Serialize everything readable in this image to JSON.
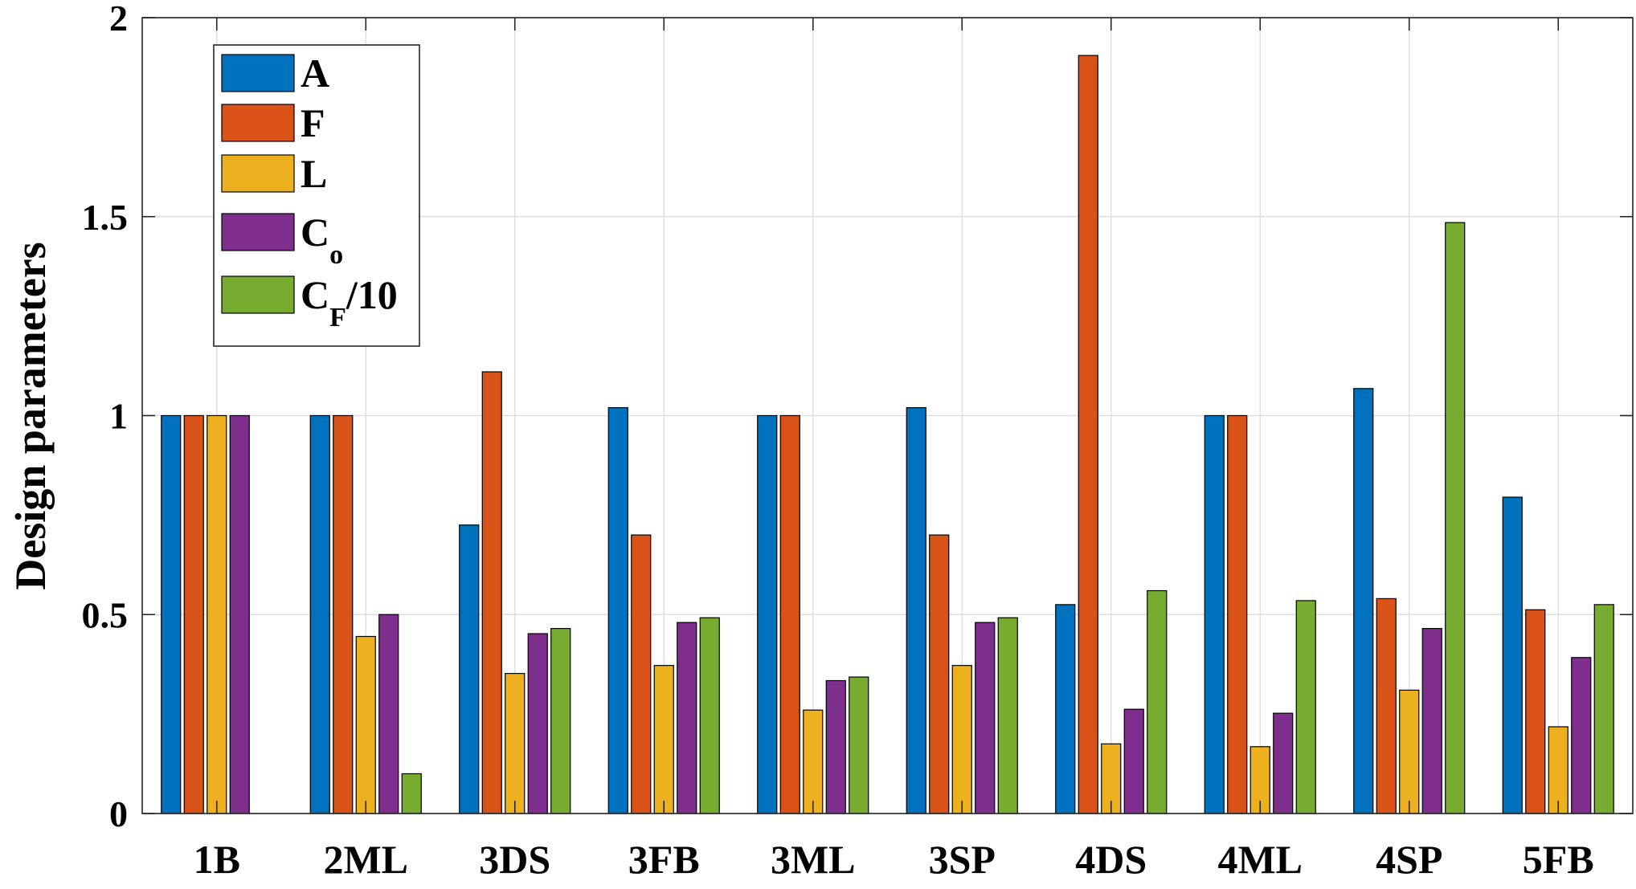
{
  "chart_data": {
    "type": "bar",
    "title": "",
    "xlabel": "",
    "ylabel": "Design parameters",
    "ylim": [
      0,
      2
    ],
    "yticks": [
      0,
      0.5,
      1,
      1.5,
      2
    ],
    "ytick_labels": [
      "0",
      "0.5",
      "1",
      "1.5",
      "2"
    ],
    "grid": true,
    "legend_position": "top-left",
    "categories": [
      "1B",
      "2ML",
      "3DS",
      "3FB",
      "3ML",
      "3SP",
      "4DS",
      "4ML",
      "4SP",
      "5FB"
    ],
    "series": [
      {
        "name": "A",
        "label_main": "A",
        "label_sub": "",
        "label_suffix": "",
        "color": "#0072BD",
        "values": [
          1.0,
          1.0,
          0.725,
          1.02,
          1.0,
          1.02,
          0.525,
          1.0,
          1.068,
          0.795
        ]
      },
      {
        "name": "F",
        "label_main": "F",
        "label_sub": "",
        "label_suffix": "",
        "color": "#D95319",
        "values": [
          1.0,
          1.0,
          1.11,
          0.7,
          1.0,
          0.7,
          1.905,
          1.0,
          0.54,
          0.512
        ]
      },
      {
        "name": "L",
        "label_main": "L",
        "label_sub": "",
        "label_suffix": "",
        "color": "#EDB120",
        "values": [
          1.0,
          0.445,
          0.352,
          0.372,
          0.26,
          0.372,
          0.175,
          0.168,
          0.31,
          0.218
        ]
      },
      {
        "name": "Co",
        "label_main": "C",
        "label_sub": "o",
        "label_suffix": "",
        "color": "#7E2F8E",
        "values": [
          1.0,
          0.5,
          0.452,
          0.48,
          0.334,
          0.48,
          0.262,
          0.252,
          0.465,
          0.392
        ]
      },
      {
        "name": "CF/10",
        "label_main": "C",
        "label_sub": "F",
        "label_suffix": "/10",
        "color": "#77AC30",
        "values": [
          0,
          0.1,
          0.465,
          0.492,
          0.343,
          0.492,
          0.56,
          0.535,
          1.485,
          0.525
        ]
      }
    ]
  }
}
